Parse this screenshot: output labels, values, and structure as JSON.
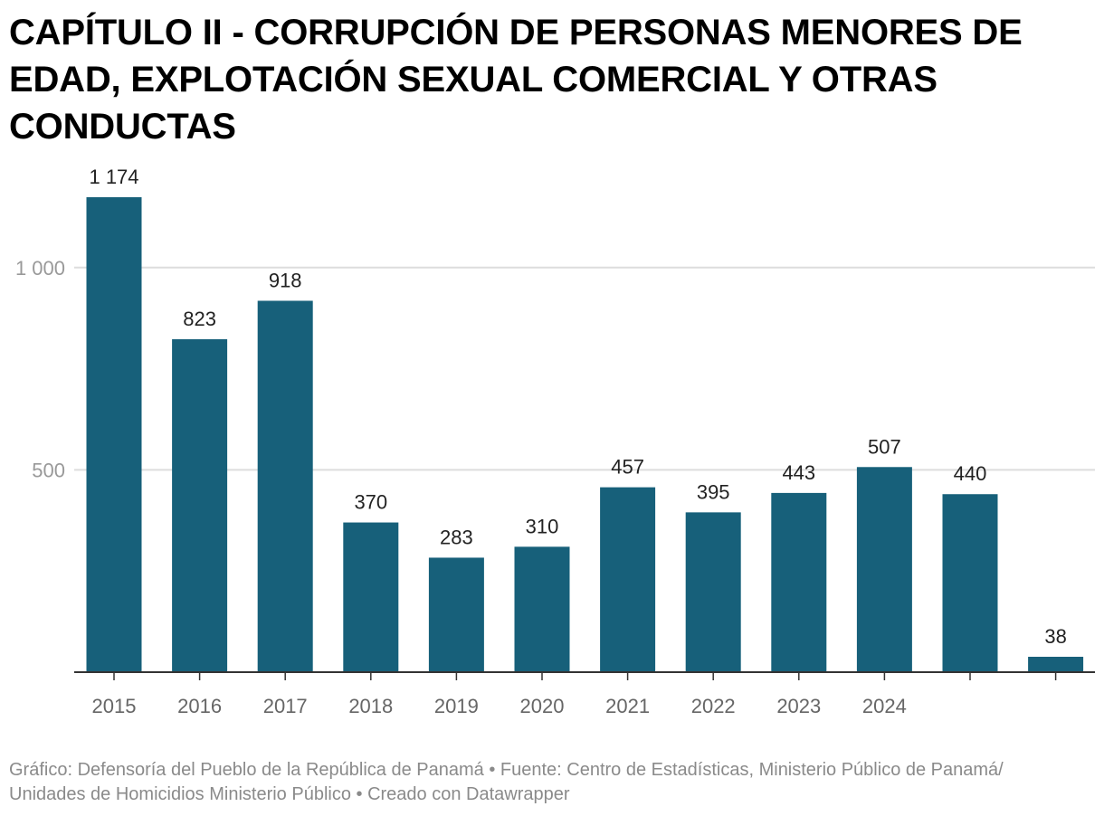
{
  "chart_data": {
    "type": "bar",
    "title": "CAPÍTULO II - CORRUPCIÓN DE PERSONAS MENORES DE EDAD, EXPLOTACIÓN SEXUAL COMERCIAL Y OTRAS CONDUCTAS",
    "categories": [
      "2015",
      "2016",
      "2017",
      "2018",
      "2019",
      "2020",
      "2021",
      "2022",
      "2023",
      "2024",
      "",
      ""
    ],
    "values": [
      1174,
      823,
      918,
      370,
      283,
      310,
      457,
      395,
      443,
      507,
      440,
      38
    ],
    "value_labels": [
      "1 174",
      "823",
      "918",
      "370",
      "283",
      "310",
      "457",
      "395",
      "443",
      "507",
      "440",
      "38"
    ],
    "y_ticks": [
      500,
      1000
    ],
    "y_tick_labels": [
      "500",
      "1 000"
    ],
    "ylim": [
      0,
      1174
    ],
    "xlabel": "",
    "ylabel": "",
    "grid": true,
    "legend": "none",
    "colors": {
      "bar": "#17607a",
      "grid": "#dddddd",
      "axis": "#333333",
      "tick_label": "#999999",
      "x_label": "#666666",
      "value_label": "#222222"
    }
  },
  "footer": {
    "line1": "Gráfico: Defensoría del Pueblo de la República de Panamá • Fuente: Centro de Estadísticas, Ministerio Público de Panamá/",
    "line2": "Unidades de Homicidios Ministerio Público • Creado con Datawrapper"
  }
}
